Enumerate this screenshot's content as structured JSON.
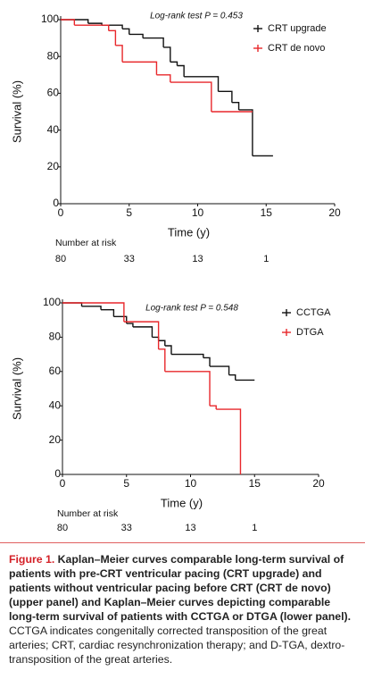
{
  "chart_data": [
    {
      "type": "line",
      "step": true,
      "annotation": "Log-rank test P = 0.453",
      "y_label": "Survival (%)",
      "x_label": "Time (y)",
      "xlim": [
        0,
        20
      ],
      "xticks": [
        0,
        5,
        10,
        15,
        20
      ],
      "ylim": [
        0,
        100
      ],
      "yticks": [
        0,
        20,
        40,
        60,
        80,
        100
      ],
      "series": [
        {
          "name": "CRT upgrade",
          "color": "#111111",
          "x": [
            0,
            2,
            3,
            4.5,
            5,
            6,
            7.5,
            8,
            8.5,
            9,
            11.5,
            12.5,
            13,
            14,
            15.5
          ],
          "values": [
            100,
            98,
            97,
            95,
            92,
            90,
            85,
            77,
            75,
            69,
            61,
            55,
            51,
            26,
            26
          ]
        },
        {
          "name": "CRT de novo",
          "color": "#e8272b",
          "x": [
            0,
            1,
            3.5,
            4,
            4.5,
            7,
            8,
            11,
            14
          ],
          "values": [
            100,
            97,
            94,
            86,
            77,
            70,
            66,
            50,
            50
          ]
        }
      ],
      "risk_label": "Number at risk",
      "risk_x": [
        0,
        5,
        10,
        15
      ],
      "risk_values": [
        80,
        33,
        13,
        1
      ]
    },
    {
      "type": "line",
      "step": true,
      "annotation": "Log-rank test P = 0.548",
      "y_label": "Survival (%)",
      "x_label": "Time (y)",
      "xlim": [
        0,
        20
      ],
      "xticks": [
        0,
        5,
        10,
        15,
        20
      ],
      "ylim": [
        0,
        100
      ],
      "yticks": [
        0,
        20,
        40,
        60,
        80,
        100
      ],
      "series": [
        {
          "name": "CCTGA",
          "color": "#111111",
          "x": [
            0,
            1.5,
            3,
            4,
            5,
            5.5,
            7,
            7.5,
            8,
            8.5,
            11,
            11.5,
            13,
            13.5,
            15
          ],
          "values": [
            100,
            98,
            96,
            92,
            88,
            86,
            80,
            78,
            75,
            70,
            68,
            63,
            58,
            55,
            55
          ]
        },
        {
          "name": "DTGA",
          "color": "#e8272b",
          "x": [
            0,
            4.8,
            7.5,
            8,
            11.5,
            12,
            13.9
          ],
          "values": [
            100,
            89,
            73,
            60,
            40,
            38,
            0
          ]
        }
      ],
      "risk_label": "Number at risk",
      "risk_x": [
        0,
        5,
        10,
        15
      ],
      "risk_values": [
        80,
        33,
        13,
        1
      ]
    }
  ],
  "caption": {
    "label": "Figure 1.",
    "title": "Kaplan–Meier curves comparable long-term survival of patients with pre-CRT ventricular pacing (CRT upgrade) and patients without ventricular pacing before CRT (CRT de novo) (upper panel) and Kaplan–Meier curves depicting comparable long-term survival of patients with CCTGA or DTGA (lower panel).",
    "note": "CCTGA indicates congenitally corrected transposition of the great arteries; CRT, cardiac resynchronization therapy; and D-TGA, dextro-transposition of the great arteries."
  }
}
